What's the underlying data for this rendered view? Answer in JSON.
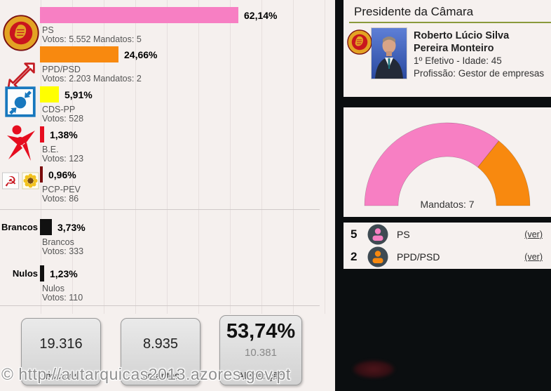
{
  "watermark": {
    "text": "© http://autarquicas2013.azores.gov.pt"
  },
  "chart_data": [
    {
      "type": "bar",
      "orientation": "horizontal",
      "unit": "percent",
      "xlim": [
        0,
        100
      ],
      "grid": true,
      "bars": [
        {
          "label": "PS",
          "value": 62.14,
          "value_label": "62,14%",
          "detail": "Votos: 5.552 Mandatos: 5",
          "color": "#F77FC3",
          "icon": "ps-emblem-icon"
        },
        {
          "label": "PPD/PSD",
          "value": 24.66,
          "value_label": "24,66%",
          "detail": "Votos: 2.203 Mandatos: 2",
          "color": "#F8890F",
          "icon": "psd-arrow-icon"
        },
        {
          "label": "CDS-PP",
          "value": 5.91,
          "value_label": "5,91%",
          "detail": "Votos: 528",
          "color": "#FFFF00",
          "icon": "cds-pp-icon"
        },
        {
          "label": "B.E.",
          "value": 1.38,
          "value_label": "1,38%",
          "detail": "Votos: 123",
          "color": "#E60D1F",
          "icon": "be-star-icon"
        },
        {
          "label": "PCP-PEV",
          "value": 0.96,
          "value_label": "0,96%",
          "detail": "Votos: 86",
          "color": "#7B0B0B",
          "icon": "pcp-pev-icon"
        },
        {
          "label": "Brancos",
          "value": 3.73,
          "value_label": "3,73%",
          "detail": "Votos: 333",
          "color": "#111111",
          "side_label": "Brancos"
        },
        {
          "label": "Nulos",
          "value": 1.23,
          "value_label": "1,23%",
          "detail": "Votos: 110",
          "color": "#111111",
          "side_label": "Nulos"
        }
      ]
    },
    {
      "type": "pie",
      "shape": "half-donut",
      "title": "Mandatos: 7",
      "total_seats": 7,
      "segments": [
        {
          "label": "PS",
          "value": 5,
          "color": "#F77FC3"
        },
        {
          "label": "PPD/PSD",
          "value": 2,
          "color": "#F8890F"
        }
      ]
    }
  ],
  "summary_boxes": [
    {
      "value": "19.316",
      "label": "Inscritos"
    },
    {
      "value": "8.935",
      "label": "Votantes"
    },
    {
      "value": "53,74%",
      "sub_value": "10.381",
      "label": "Abstenção"
    }
  ],
  "president_card": {
    "title": "Presidente da Câmara",
    "name": "Roberto Lúcio Silva Pereira Monteiro",
    "detail_line1": "1º Efetivo - Idade: 45",
    "detail_line2": "Profissão: Gestor de empresas"
  },
  "mandates_list": [
    {
      "seats": "5",
      "party": "PS",
      "link_label": "(ver)",
      "color": "#F77FC3"
    },
    {
      "seats": "2",
      "party": "PPD/PSD",
      "link_label": "(ver)",
      "color": "#F8890F"
    }
  ]
}
